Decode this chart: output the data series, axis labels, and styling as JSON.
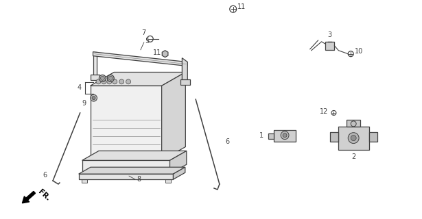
{
  "bg_color": "#ffffff",
  "line_color": "#404040",
  "fig_width": 6.15,
  "fig_height": 3.2,
  "dpi": 100
}
